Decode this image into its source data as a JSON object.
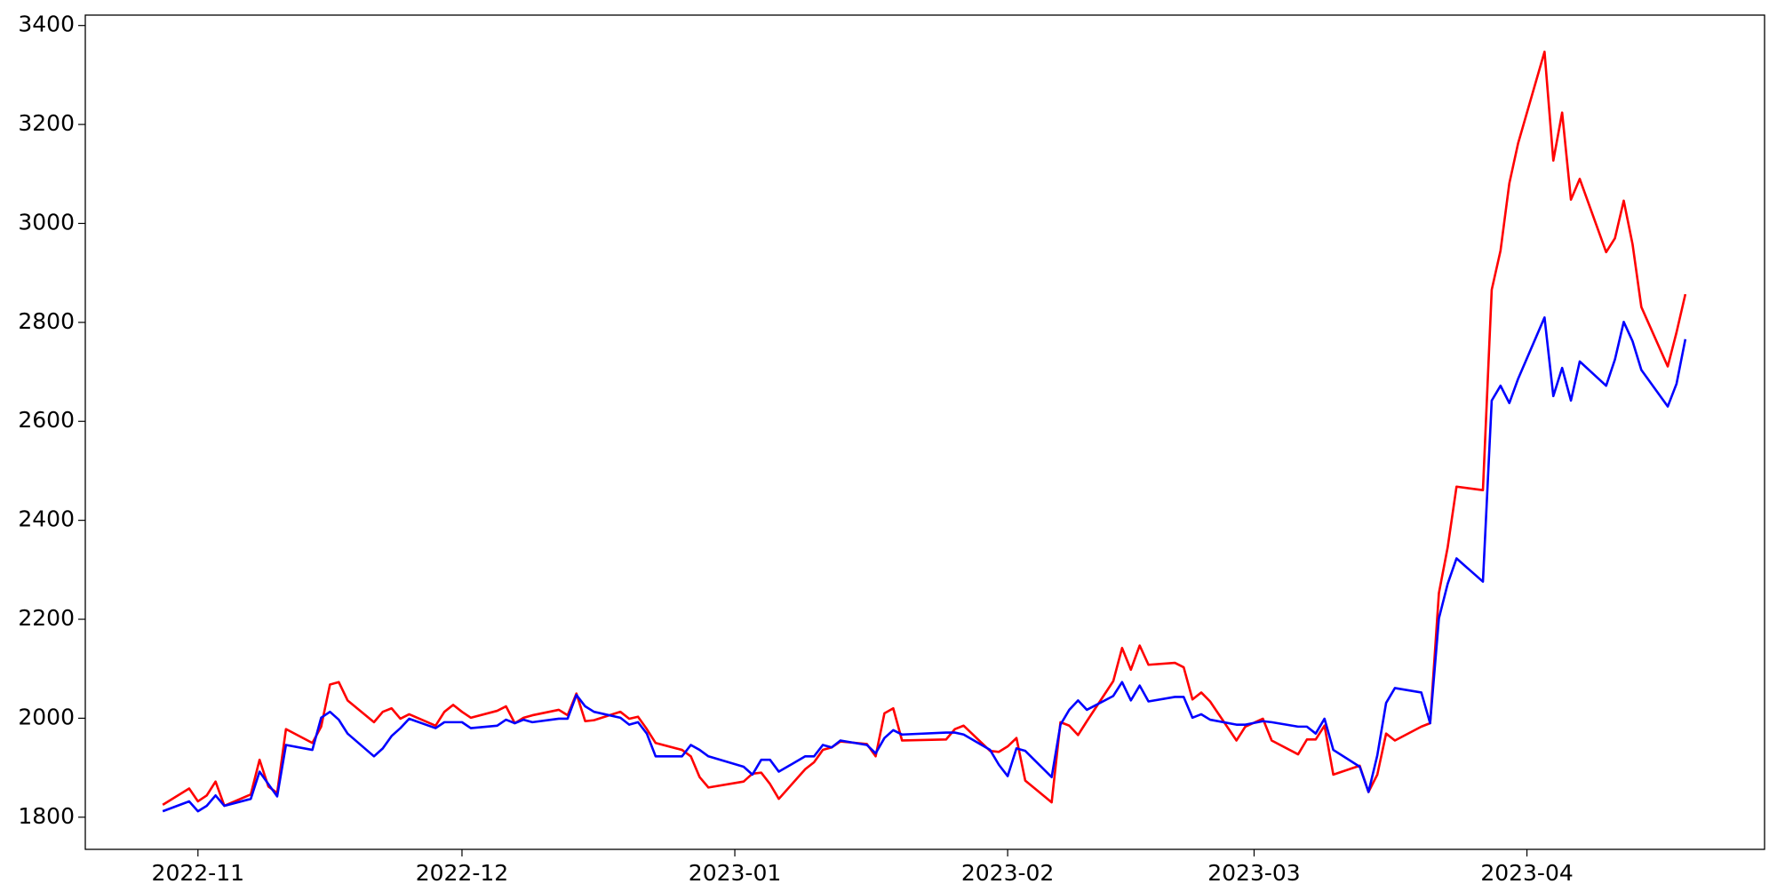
{
  "chart_data": {
    "type": "line",
    "x": [
      -4,
      -1,
      0,
      1,
      2,
      3,
      6,
      7,
      8,
      9,
      10,
      13,
      14,
      15,
      16,
      17,
      20,
      21,
      22,
      23,
      24,
      27,
      28,
      29,
      30,
      31,
      34,
      35,
      36,
      37,
      38,
      41,
      42,
      43,
      44,
      45,
      48,
      49,
      50,
      51,
      52,
      55,
      56,
      57,
      58,
      62,
      63,
      64,
      65,
      66,
      69,
      70,
      71,
      72,
      73,
      76,
      77,
      78,
      79,
      80,
      85,
      86,
      87,
      90,
      91,
      92,
      93,
      94,
      97,
      98,
      99,
      100,
      101,
      104,
      105,
      106,
      107,
      108,
      111,
      112,
      113,
      114,
      115,
      118,
      119,
      121,
      122,
      125,
      126,
      127,
      128,
      129,
      132,
      133,
      134,
      135,
      136,
      139,
      140,
      141,
      142,
      143,
      146,
      147,
      148,
      149,
      150,
      153,
      154,
      155,
      156,
      157,
      160,
      161,
      162,
      163,
      164,
      167,
      168,
      169
    ],
    "series": [
      {
        "color": "#ff0000",
        "values": [
          1825,
          1858,
          1832,
          1844,
          1872,
          1823,
          1846,
          1916,
          1862,
          1849,
          1978,
          1950,
          1983,
          2068,
          2073,
          2036,
          1992,
          2013,
          2020,
          1999,
          2008,
          1985,
          2013,
          2027,
          2013,
          2001,
          2015,
          2024,
          1990,
          2001,
          2006,
          2017,
          2006,
          2050,
          1994,
          1996,
          2013,
          1999,
          2003,
          1978,
          1950,
          1936,
          1923,
          1881,
          1860,
          1872,
          1888,
          1890,
          1867,
          1837,
          1897,
          1911,
          1936,
          1941,
          1953,
          1948,
          1923,
          2010,
          2020,
          1955,
          1957,
          1978,
          1985,
          1934,
          1932,
          1943,
          1960,
          1874,
          1830,
          1992,
          1985,
          1966,
          1994,
          2075,
          2142,
          2098,
          2147,
          2108,
          2112,
          2103,
          2038,
          2052,
          2034,
          1955,
          1983,
          1999,
          1955,
          1927,
          1957,
          1957,
          1985,
          1886,
          1904,
          1851,
          1886,
          1969,
          1955,
          1983,
          1990,
          2253,
          2346,
          2468,
          2461,
          2866,
          2945,
          3081,
          3162,
          3347,
          3127,
          3224,
          3048,
          3090,
          2942,
          2970,
          3046,
          2958,
          2831,
          2711,
          2780,
          2857
        ]
      },
      {
        "color": "#0000ff",
        "values": [
          1812,
          1832,
          1812,
          1823,
          1844,
          1823,
          1837,
          1892,
          1867,
          1842,
          1946,
          1936,
          2001,
          2013,
          1997,
          1969,
          1923,
          1939,
          1964,
          1980,
          1999,
          1980,
          1992,
          1992,
          1992,
          1980,
          1985,
          1997,
          1990,
          1997,
          1992,
          1999,
          1999,
          2047,
          2024,
          2013,
          2001,
          1987,
          1992,
          1969,
          1923,
          1923,
          1946,
          1936,
          1923,
          1902,
          1886,
          1916,
          1916,
          1892,
          1923,
          1923,
          1946,
          1941,
          1955,
          1946,
          1929,
          1960,
          1976,
          1967,
          1971,
          1971,
          1967,
          1936,
          1906,
          1883,
          1939,
          1934,
          1881,
          1987,
          2017,
          2036,
          2017,
          2045,
          2073,
          2036,
          2066,
          2034,
          2043,
          2043,
          2001,
          2008,
          1997,
          1987,
          1987,
          1994,
          1992,
          1983,
          1983,
          1969,
          1999,
          1936,
          1902,
          1851,
          1925,
          2031,
          2061,
          2052,
          1990,
          2202,
          2272,
          2323,
          2276,
          2642,
          2672,
          2637,
          2686,
          2810,
          2651,
          2708,
          2642,
          2721,
          2672,
          2725,
          2801,
          2762,
          2704,
          2630,
          2676,
          2766
        ]
      }
    ],
    "xlim": [
      -12.8,
      178
    ],
    "xticks": [
      {
        "value": 0,
        "label": "2022-11"
      },
      {
        "value": 30,
        "label": "2022-12"
      },
      {
        "value": 61,
        "label": "2023-01"
      },
      {
        "value": 92,
        "label": "2023-02"
      },
      {
        "value": 120,
        "label": "2023-03"
      },
      {
        "value": 151,
        "label": "2023-04"
      }
    ],
    "ylim": [
      1735,
      3421
    ],
    "yticks": [
      1800,
      2000,
      2200,
      2400,
      2600,
      2800,
      3000,
      3200,
      3400
    ]
  }
}
